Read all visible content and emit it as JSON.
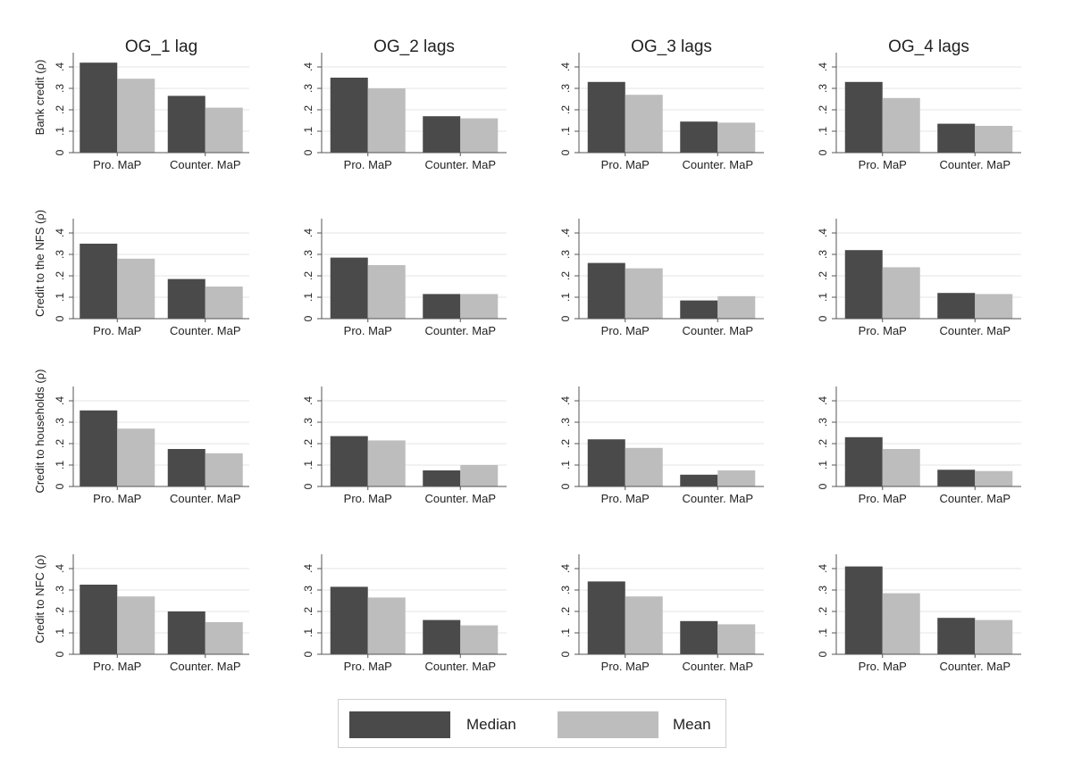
{
  "colors": {
    "median": "#4a4a4a",
    "mean": "#bdbdbd",
    "axis": "#555555",
    "grid": "#e6e6e6",
    "text": "#222222"
  },
  "legend": {
    "median_label": "Median",
    "mean_label": "Mean"
  },
  "chart_data": {
    "type": "bar",
    "layout": "grid-4x4",
    "columns": [
      "OG_1 lag",
      "OG_2 lags",
      "OG_3 lags",
      "OG_4 lags"
    ],
    "rows": [
      "Bank credit (ρ)",
      "Credit to the NFS (ρ)",
      "Credit to households (ρ)",
      "Credit to NFC (ρ)"
    ],
    "categories": [
      "Pro. MaP",
      "Counter. MaP"
    ],
    "y_ticks": [
      0,
      0.1,
      0.2,
      0.3,
      0.4
    ],
    "y_tick_labels": [
      "0",
      ".1",
      ".2",
      ".3",
      ".4"
    ],
    "ylim": [
      0,
      0.45
    ],
    "grid": true,
    "legend_position": "bottom",
    "panels": [
      {
        "column": "OG_1 lag",
        "row": "Bank credit (ρ)",
        "series": [
          {
            "name": "Median",
            "values": [
              0.42,
              0.265
            ]
          },
          {
            "name": "Mean",
            "values": [
              0.345,
              0.21
            ]
          }
        ]
      },
      {
        "column": "OG_2 lags",
        "row": "Bank credit (ρ)",
        "series": [
          {
            "name": "Median",
            "values": [
              0.35,
              0.17
            ]
          },
          {
            "name": "Mean",
            "values": [
              0.3,
              0.16
            ]
          }
        ]
      },
      {
        "column": "OG_3 lags",
        "row": "Bank credit (ρ)",
        "series": [
          {
            "name": "Median",
            "values": [
              0.33,
              0.145
            ]
          },
          {
            "name": "Mean",
            "values": [
              0.27,
              0.14
            ]
          }
        ]
      },
      {
        "column": "OG_4 lags",
        "row": "Bank credit (ρ)",
        "series": [
          {
            "name": "Median",
            "values": [
              0.33,
              0.135
            ]
          },
          {
            "name": "Mean",
            "values": [
              0.255,
              0.125
            ]
          }
        ]
      },
      {
        "column": "OG_1 lag",
        "row": "Credit to the NFS (ρ)",
        "series": [
          {
            "name": "Median",
            "values": [
              0.35,
              0.185
            ]
          },
          {
            "name": "Mean",
            "values": [
              0.28,
              0.15
            ]
          }
        ]
      },
      {
        "column": "OG_2 lags",
        "row": "Credit to the NFS (ρ)",
        "series": [
          {
            "name": "Median",
            "values": [
              0.285,
              0.115
            ]
          },
          {
            "name": "Mean",
            "values": [
              0.25,
              0.115
            ]
          }
        ]
      },
      {
        "column": "OG_3 lags",
        "row": "Credit to the NFS (ρ)",
        "series": [
          {
            "name": "Median",
            "values": [
              0.26,
              0.085
            ]
          },
          {
            "name": "Mean",
            "values": [
              0.235,
              0.105
            ]
          }
        ]
      },
      {
        "column": "OG_4 lags",
        "row": "Credit to the NFS (ρ)",
        "series": [
          {
            "name": "Median",
            "values": [
              0.32,
              0.12
            ]
          },
          {
            "name": "Mean",
            "values": [
              0.24,
              0.115
            ]
          }
        ]
      },
      {
        "column": "OG_1 lag",
        "row": "Credit to households (ρ)",
        "series": [
          {
            "name": "Median",
            "values": [
              0.355,
              0.175
            ]
          },
          {
            "name": "Mean",
            "values": [
              0.27,
              0.155
            ]
          }
        ]
      },
      {
        "column": "OG_2 lags",
        "row": "Credit to households (ρ)",
        "series": [
          {
            "name": "Median",
            "values": [
              0.235,
              0.075
            ]
          },
          {
            "name": "Mean",
            "values": [
              0.215,
              0.1
            ]
          }
        ]
      },
      {
        "column": "OG_3 lags",
        "row": "Credit to households (ρ)",
        "series": [
          {
            "name": "Median",
            "values": [
              0.22,
              0.055
            ]
          },
          {
            "name": "Mean",
            "values": [
              0.18,
              0.075
            ]
          }
        ]
      },
      {
        "column": "OG_4 lags",
        "row": "Credit to households (ρ)",
        "series": [
          {
            "name": "Median",
            "values": [
              0.23,
              0.078
            ]
          },
          {
            "name": "Mean",
            "values": [
              0.175,
              0.072
            ]
          }
        ]
      },
      {
        "column": "OG_1 lag",
        "row": "Credit to NFC (ρ)",
        "series": [
          {
            "name": "Median",
            "values": [
              0.325,
              0.2
            ]
          },
          {
            "name": "Mean",
            "values": [
              0.27,
              0.15
            ]
          }
        ]
      },
      {
        "column": "OG_2 lags",
        "row": "Credit to NFC (ρ)",
        "series": [
          {
            "name": "Median",
            "values": [
              0.315,
              0.16
            ]
          },
          {
            "name": "Mean",
            "values": [
              0.265,
              0.135
            ]
          }
        ]
      },
      {
        "column": "OG_3 lags",
        "row": "Credit to NFC (ρ)",
        "series": [
          {
            "name": "Median",
            "values": [
              0.34,
              0.155
            ]
          },
          {
            "name": "Mean",
            "values": [
              0.27,
              0.14
            ]
          }
        ]
      },
      {
        "column": "OG_4 lags",
        "row": "Credit to NFC (ρ)",
        "series": [
          {
            "name": "Median",
            "values": [
              0.41,
              0.17
            ]
          },
          {
            "name": "Mean",
            "values": [
              0.285,
              0.16
            ]
          }
        ]
      }
    ]
  }
}
